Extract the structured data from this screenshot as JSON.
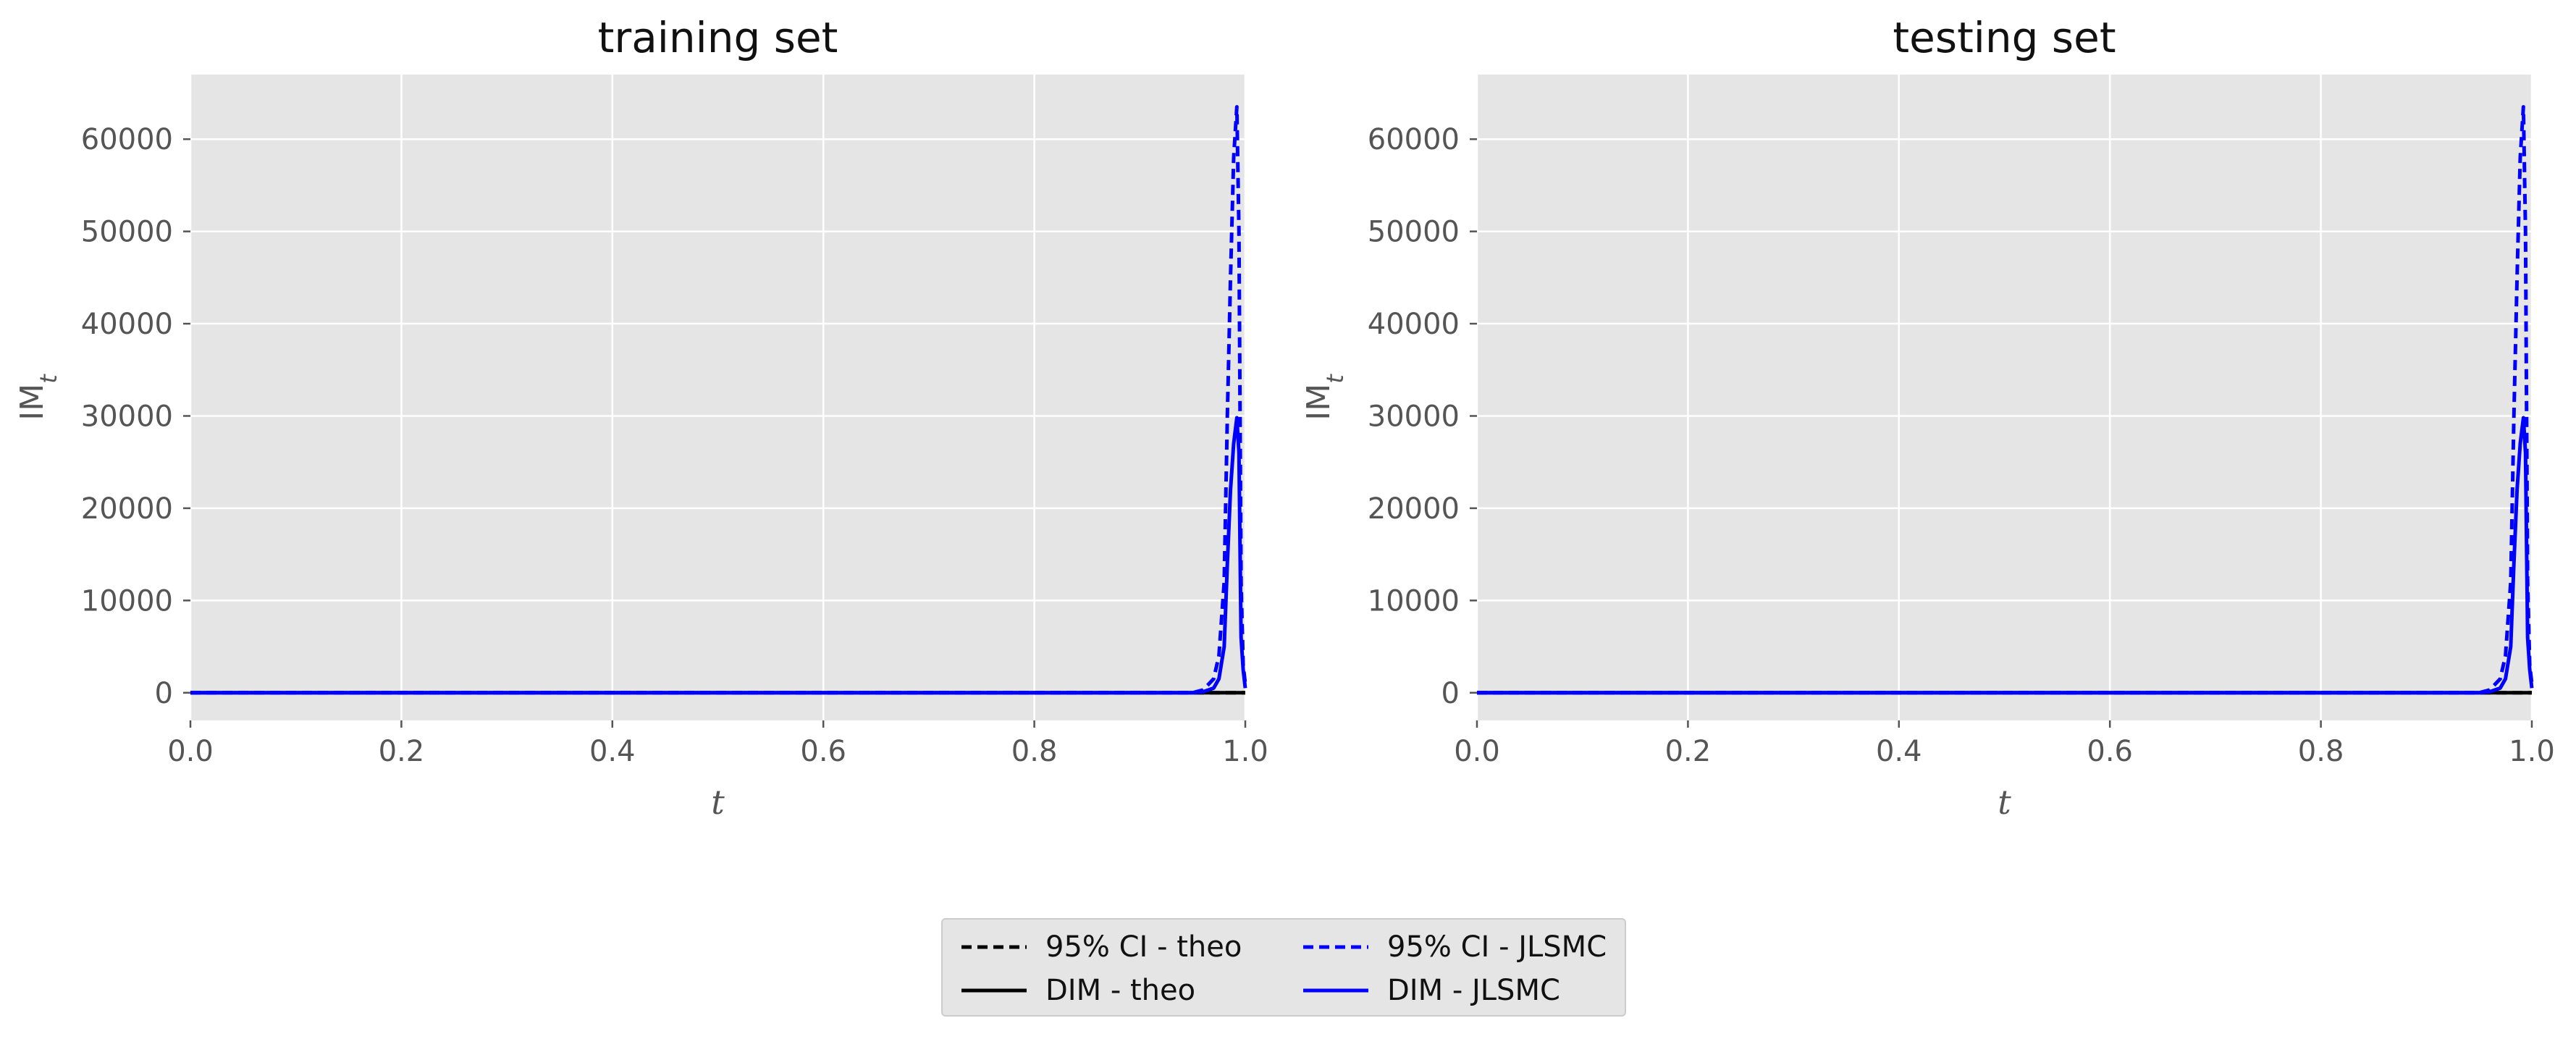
{
  "chart_data": [
    {
      "type": "line",
      "title": "training set",
      "xlabel": "t",
      "ylabel": "IM_t",
      "xlim": [
        0.0,
        1.0
      ],
      "ylim": [
        -3000,
        67000
      ],
      "xticks": [
        "0.0",
        "0.2",
        "0.4",
        "0.6",
        "0.8",
        "1.0"
      ],
      "yticks": [
        "0",
        "10000",
        "20000",
        "30000",
        "40000",
        "50000",
        "60000"
      ],
      "grid": true,
      "series": [
        {
          "name": "95% CI - theo",
          "color": "#000000",
          "style": "dashed",
          "x": [
            0.0,
            0.2,
            0.4,
            0.6,
            0.8,
            0.96,
            0.98,
            1.0
          ],
          "y": [
            0,
            0,
            0,
            0,
            0,
            0,
            0,
            0
          ]
        },
        {
          "name": "DIM - theo",
          "color": "#000000",
          "style": "solid",
          "x": [
            0.0,
            0.2,
            0.4,
            0.6,
            0.8,
            0.96,
            0.98,
            1.0
          ],
          "y": [
            0,
            0,
            0,
            0,
            0,
            0,
            0,
            0
          ]
        },
        {
          "name": "95% CI - JLSMC",
          "color": "#0000ff",
          "style": "dashed",
          "x": [
            0.0,
            0.5,
            0.95,
            0.96,
            0.97,
            0.975,
            0.98,
            0.983,
            0.986,
            0.989,
            0.992,
            0.994,
            0.996,
            0.998,
            1.0
          ],
          "y": [
            0,
            0,
            0,
            300,
            1500,
            4000,
            12000,
            30000,
            45000,
            58000,
            63500,
            50000,
            12000,
            3000,
            1000
          ]
        },
        {
          "name": "DIM - JLSMC",
          "color": "#0000ff",
          "style": "solid",
          "x": [
            0.0,
            0.5,
            0.95,
            0.96,
            0.97,
            0.975,
            0.98,
            0.983,
            0.986,
            0.989,
            0.992,
            0.994,
            0.996,
            0.998,
            1.0
          ],
          "y": [
            0,
            0,
            0,
            100,
            500,
            1500,
            5000,
            14000,
            22000,
            27000,
            29800,
            26000,
            6000,
            2500,
            500
          ]
        }
      ]
    },
    {
      "type": "line",
      "title": "testing set",
      "xlabel": "t",
      "ylabel": "IM_t",
      "xlim": [
        0.0,
        1.0
      ],
      "ylim": [
        -3000,
        67000
      ],
      "xticks": [
        "0.0",
        "0.2",
        "0.4",
        "0.6",
        "0.8",
        "1.0"
      ],
      "yticks": [
        "0",
        "10000",
        "20000",
        "30000",
        "40000",
        "50000",
        "60000"
      ],
      "grid": true,
      "series": [
        {
          "name": "95% CI - theo",
          "color": "#000000",
          "style": "dashed",
          "x": [
            0.0,
            0.2,
            0.4,
            0.6,
            0.8,
            0.96,
            0.98,
            1.0
          ],
          "y": [
            0,
            0,
            0,
            0,
            0,
            0,
            0,
            0
          ]
        },
        {
          "name": "DIM - theo",
          "color": "#000000",
          "style": "solid",
          "x": [
            0.0,
            0.2,
            0.4,
            0.6,
            0.8,
            0.96,
            0.98,
            1.0
          ],
          "y": [
            0,
            0,
            0,
            0,
            0,
            0,
            0,
            0
          ]
        },
        {
          "name": "95% CI - JLSMC",
          "color": "#0000ff",
          "style": "dashed",
          "x": [
            0.0,
            0.5,
            0.95,
            0.96,
            0.97,
            0.975,
            0.98,
            0.983,
            0.986,
            0.989,
            0.992,
            0.994,
            0.996,
            0.998,
            1.0
          ],
          "y": [
            0,
            0,
            0,
            300,
            1500,
            4000,
            12000,
            30000,
            45000,
            58000,
            63500,
            50000,
            12000,
            3000,
            1000
          ]
        },
        {
          "name": "DIM - JLSMC",
          "color": "#0000ff",
          "style": "solid",
          "x": [
            0.0,
            0.5,
            0.95,
            0.96,
            0.97,
            0.975,
            0.98,
            0.983,
            0.986,
            0.989,
            0.992,
            0.994,
            0.996,
            0.998,
            1.0
          ],
          "y": [
            0,
            0,
            0,
            100,
            500,
            1500,
            5000,
            14000,
            22000,
            27000,
            29800,
            26000,
            6000,
            2500,
            500
          ]
        }
      ]
    }
  ],
  "legend": {
    "placement": "bottom-center",
    "items": [
      {
        "label": "95% CI - theo",
        "color": "#000000",
        "style": "dashed"
      },
      {
        "label": "DIM - theo",
        "color": "#000000",
        "style": "solid"
      },
      {
        "label": "95% CI - JLSMC",
        "color": "#0000ff",
        "style": "dashed"
      },
      {
        "label": "DIM - JLSMC",
        "color": "#0000ff",
        "style": "solid"
      }
    ]
  },
  "colors": {
    "plot_background": "#e5e5e5",
    "grid": "#ffffff",
    "tick_text": "#555555",
    "title_text": "#111111"
  }
}
